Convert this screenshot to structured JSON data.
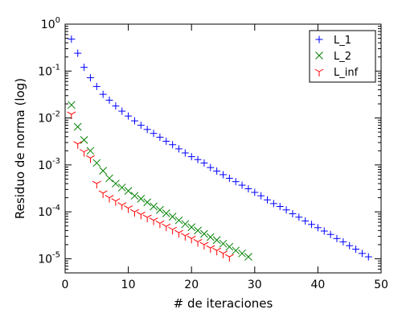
{
  "chart_data": {
    "type": "scatter",
    "xlabel": "# de iteraciones",
    "ylabel": "Residuo de norma (log)",
    "xlim": [
      0,
      50
    ],
    "ylim": [
      5e-06,
      1
    ],
    "yscale": "log",
    "grid": false,
    "legend_position": "top-right",
    "x_ticks": [
      "0",
      "10",
      "20",
      "30",
      "40",
      "50"
    ],
    "y_ticks": [
      {
        "base": "10",
        "exp": "0"
      },
      {
        "base": "10",
        "exp": "-1"
      },
      {
        "base": "10",
        "exp": "-2"
      },
      {
        "base": "10",
        "exp": "-3"
      },
      {
        "base": "10",
        "exp": "-4"
      },
      {
        "base": "10",
        "exp": "-5"
      }
    ],
    "series": [
      {
        "name": "L_1",
        "marker": "plus",
        "color": "#0000ff",
        "x": [
          1,
          2,
          3,
          4,
          5,
          6,
          7,
          8,
          9,
          10,
          11,
          12,
          13,
          14,
          15,
          16,
          17,
          18,
          19,
          20,
          21,
          22,
          23,
          24,
          25,
          26,
          27,
          28,
          29,
          30,
          31,
          32,
          33,
          34,
          35,
          36,
          37,
          38,
          39,
          40,
          41,
          42,
          43,
          44,
          45,
          46,
          47,
          48
        ],
        "y": [
          0.48,
          0.24,
          0.12,
          0.072,
          0.047,
          0.032,
          0.024,
          0.018,
          0.014,
          0.011,
          0.0087,
          0.007,
          0.0057,
          0.0047,
          0.0039,
          0.0032,
          0.0027,
          0.0022,
          0.0018,
          0.0015,
          0.0013,
          0.0011,
          0.00088,
          0.00074,
          0.00062,
          0.00052,
          0.00044,
          0.00037,
          0.00031,
          0.00026,
          0.00022,
          0.00018,
          0.00015,
          0.00013,
          0.00011,
          9.1e-05,
          7.7e-05,
          6.4e-05,
          5.4e-05,
          4.6e-05,
          3.9e-05,
          3.3e-05,
          2.7e-05,
          2.3e-05,
          1.9e-05,
          1.6e-05,
          1.3e-05,
          1.1e-05
        ]
      },
      {
        "name": "L_2",
        "marker": "x",
        "color": "#008000",
        "x": [
          1,
          2,
          3,
          4,
          5,
          6,
          7,
          8,
          9,
          10,
          11,
          12,
          13,
          14,
          15,
          16,
          17,
          18,
          19,
          20,
          21,
          22,
          23,
          24,
          25,
          26,
          27,
          28,
          29
        ],
        "y": [
          0.019,
          0.0065,
          0.0034,
          0.002,
          0.0011,
          0.00075,
          0.00052,
          0.0004,
          0.00033,
          0.00028,
          0.00022,
          0.00019,
          0.00016,
          0.00013,
          0.00011,
          9.3e-05,
          7.9e-05,
          6.6e-05,
          5.5e-05,
          4.7e-05,
          4e-05,
          3.4e-05,
          2.9e-05,
          2.5e-05,
          2.1e-05,
          1.8e-05,
          1.5e-05,
          1.3e-05,
          1.1e-05
        ]
      },
      {
        "name": "L_inf",
        "marker": "tri_down",
        "color": "#ff0000",
        "x": [
          1,
          2,
          3,
          4,
          5,
          6,
          7,
          8,
          9,
          10,
          11,
          12,
          13,
          14,
          15,
          16,
          17,
          18,
          19,
          20,
          21,
          22,
          23,
          24,
          25,
          26
        ],
        "y": [
          0.012,
          0.0028,
          0.0019,
          0.0014,
          0.0004,
          0.00025,
          0.0002,
          0.00017,
          0.00014,
          0.00012,
          0.0001,
          8.8e-05,
          7.6e-05,
          6.6e-05,
          5.7e-05,
          4.9e-05,
          4.2e-05,
          3.6e-05,
          3.1e-05,
          2.7e-05,
          2.3e-05,
          2e-05,
          1.7e-05,
          1.5e-05,
          1.3e-05,
          1.1e-05
        ]
      }
    ]
  }
}
